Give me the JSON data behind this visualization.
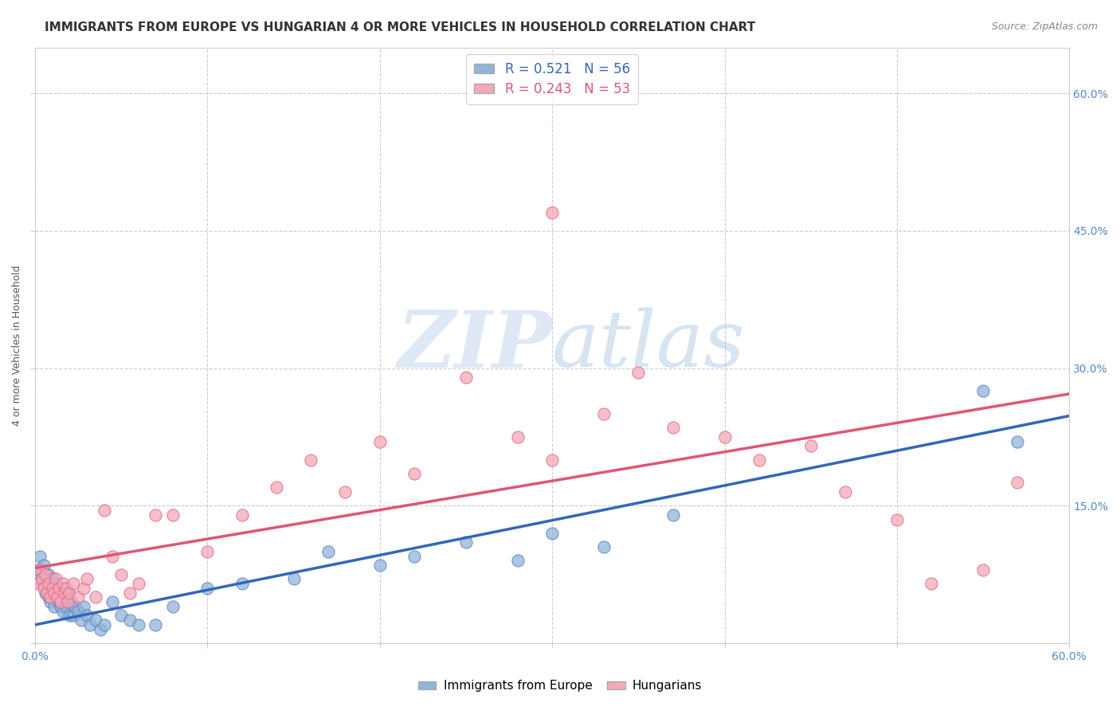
{
  "title": "IMMIGRANTS FROM EUROPE VS HUNGARIAN 4 OR MORE VEHICLES IN HOUSEHOLD CORRELATION CHART",
  "source_text": "Source: ZipAtlas.com",
  "ylabel": "4 or more Vehicles in Household",
  "xlim": [
    0.0,
    0.6
  ],
  "ylim": [
    0.0,
    0.65
  ],
  "xticks": [
    0.0,
    0.1,
    0.2,
    0.3,
    0.4,
    0.5,
    0.6
  ],
  "xtick_labels": [
    "0.0%",
    "",
    "",
    "",
    "",
    "",
    "60.0%"
  ],
  "yticks_right": [
    0.15,
    0.3,
    0.45,
    0.6
  ],
  "ytick_right_labels": [
    "15.0%",
    "30.0%",
    "45.0%",
    "60.0%"
  ],
  "watermark_zip": "ZIP",
  "watermark_atlas": "atlas",
  "blue_color": "#92B4D7",
  "pink_color": "#F4A8B8",
  "blue_edge_color": "#5080C0",
  "pink_edge_color": "#E06080",
  "blue_line_color": "#3366BB",
  "pink_line_color": "#E05575",
  "blue_R": 0.521,
  "blue_N": 56,
  "pink_R": 0.243,
  "pink_N": 53,
  "legend_label_blue": "Immigrants from Europe",
  "legend_label_pink": "Hungarians",
  "blue_line_x0": 0.0,
  "blue_line_y0": 0.02,
  "blue_line_x1": 0.6,
  "blue_line_y1": 0.248,
  "pink_line_x0": 0.0,
  "pink_line_y0": 0.082,
  "pink_line_x1": 0.6,
  "pink_line_y1": 0.272,
  "blue_scatter_x": [
    0.002,
    0.003,
    0.003,
    0.004,
    0.005,
    0.005,
    0.006,
    0.006,
    0.007,
    0.008,
    0.008,
    0.009,
    0.01,
    0.01,
    0.011,
    0.012,
    0.012,
    0.013,
    0.014,
    0.015,
    0.015,
    0.016,
    0.017,
    0.018,
    0.019,
    0.02,
    0.021,
    0.022,
    0.023,
    0.025,
    0.027,
    0.028,
    0.03,
    0.032,
    0.035,
    0.038,
    0.04,
    0.045,
    0.05,
    0.055,
    0.06,
    0.07,
    0.08,
    0.1,
    0.12,
    0.15,
    0.17,
    0.2,
    0.22,
    0.25,
    0.28,
    0.3,
    0.33,
    0.37,
    0.55,
    0.57
  ],
  "blue_scatter_y": [
    0.08,
    0.095,
    0.075,
    0.065,
    0.07,
    0.085,
    0.055,
    0.07,
    0.06,
    0.05,
    0.075,
    0.045,
    0.055,
    0.07,
    0.04,
    0.055,
    0.065,
    0.05,
    0.045,
    0.04,
    0.06,
    0.035,
    0.05,
    0.04,
    0.055,
    0.03,
    0.045,
    0.03,
    0.04,
    0.035,
    0.025,
    0.04,
    0.03,
    0.02,
    0.025,
    0.015,
    0.02,
    0.045,
    0.03,
    0.025,
    0.02,
    0.02,
    0.04,
    0.06,
    0.065,
    0.07,
    0.1,
    0.085,
    0.095,
    0.11,
    0.09,
    0.12,
    0.105,
    0.14,
    0.275,
    0.22
  ],
  "pink_scatter_x": [
    0.002,
    0.003,
    0.004,
    0.005,
    0.006,
    0.007,
    0.008,
    0.009,
    0.01,
    0.011,
    0.012,
    0.013,
    0.014,
    0.015,
    0.016,
    0.017,
    0.018,
    0.019,
    0.02,
    0.022,
    0.025,
    0.028,
    0.03,
    0.035,
    0.04,
    0.045,
    0.05,
    0.055,
    0.06,
    0.07,
    0.08,
    0.1,
    0.12,
    0.14,
    0.16,
    0.18,
    0.2,
    0.22,
    0.25,
    0.28,
    0.3,
    0.33,
    0.35,
    0.37,
    0.4,
    0.42,
    0.45,
    0.47,
    0.5,
    0.52,
    0.55,
    0.57,
    0.3
  ],
  "pink_scatter_y": [
    0.065,
    0.08,
    0.07,
    0.06,
    0.075,
    0.055,
    0.065,
    0.05,
    0.06,
    0.055,
    0.07,
    0.05,
    0.06,
    0.045,
    0.065,
    0.055,
    0.06,
    0.045,
    0.055,
    0.065,
    0.05,
    0.06,
    0.07,
    0.05,
    0.145,
    0.095,
    0.075,
    0.055,
    0.065,
    0.14,
    0.14,
    0.1,
    0.14,
    0.17,
    0.2,
    0.165,
    0.22,
    0.185,
    0.29,
    0.225,
    0.2,
    0.25,
    0.295,
    0.235,
    0.225,
    0.2,
    0.215,
    0.165,
    0.135,
    0.065,
    0.08,
    0.175,
    0.47
  ],
  "grid_color": "#CCCCCC",
  "background_color": "#FFFFFF",
  "title_fontsize": 11,
  "axis_label_fontsize": 9,
  "tick_fontsize": 10,
  "tick_color": "#5588CC",
  "source_fontsize": 9
}
